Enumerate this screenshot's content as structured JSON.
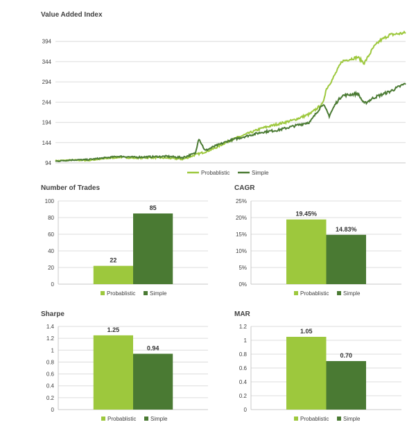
{
  "colors": {
    "probabilistic": "#9dc83d",
    "simple": "#4a7a33",
    "grid": "#dcdcdc",
    "axis": "#c8c8c8"
  },
  "chart_data": [
    {
      "type": "line",
      "title": "Value Added Index",
      "yticks": [
        94,
        144,
        194,
        244,
        294,
        344,
        394
      ],
      "ylim": [
        94,
        414
      ],
      "x_index_range": [
        0,
        1
      ],
      "grid": true,
      "legend_position": "bottom",
      "series": [
        {
          "name": "Probablistic",
          "color": "#9dc83d",
          "anchors": [
            [
              0,
              99
            ],
            [
              0.05,
              101
            ],
            [
              0.1,
              100
            ],
            [
              0.15,
              104
            ],
            [
              0.2,
              108
            ],
            [
              0.25,
              106
            ],
            [
              0.3,
              107
            ],
            [
              0.35,
              106
            ],
            [
              0.4,
              103
            ],
            [
              0.44,
              114
            ],
            [
              0.47,
              121
            ],
            [
              0.5,
              130
            ],
            [
              0.55,
              150
            ],
            [
              0.6,
              165
            ],
            [
              0.65,
              180
            ],
            [
              0.7,
              190
            ],
            [
              0.75,
              200
            ],
            [
              0.8,
              215
            ],
            [
              0.84,
              240
            ],
            [
              0.85,
              275
            ],
            [
              0.87,
              300
            ],
            [
              0.9,
              345
            ],
            [
              0.95,
              355
            ],
            [
              0.97,
              340
            ],
            [
              1.0,
              380
            ],
            [
              1.02,
              396
            ],
            [
              1.05,
              410
            ],
            [
              1.1,
              415
            ]
          ]
        },
        {
          "name": "Simple",
          "color": "#4a7a33",
          "anchors": [
            [
              0,
              98
            ],
            [
              0.05,
              101
            ],
            [
              0.1,
              102
            ],
            [
              0.15,
              106
            ],
            [
              0.2,
              110
            ],
            [
              0.25,
              108
            ],
            [
              0.3,
              109
            ],
            [
              0.35,
              110
            ],
            [
              0.4,
              107
            ],
            [
              0.44,
              118
            ],
            [
              0.45,
              155
            ],
            [
              0.47,
              124
            ],
            [
              0.5,
              135
            ],
            [
              0.55,
              150
            ],
            [
              0.6,
              160
            ],
            [
              0.65,
              170
            ],
            [
              0.7,
              175
            ],
            [
              0.75,
              185
            ],
            [
              0.8,
              195
            ],
            [
              0.84,
              240
            ],
            [
              0.86,
              210
            ],
            [
              0.88,
              240
            ],
            [
              0.9,
              260
            ],
            [
              0.95,
              265
            ],
            [
              0.97,
              240
            ],
            [
              1.0,
              255
            ],
            [
              1.05,
              270
            ],
            [
              1.1,
              290
            ]
          ]
        }
      ]
    },
    {
      "type": "bar",
      "title": "Number of Trades",
      "categories": [
        "Probablistic",
        "Simple"
      ],
      "values": [
        22,
        85
      ],
      "labels": [
        "22",
        "85"
      ],
      "ylim": [
        0,
        100
      ],
      "yticks": [
        0,
        20,
        40,
        60,
        80,
        100
      ],
      "ytick_labels": [
        "0",
        "20",
        "40",
        "60",
        "80",
        "100"
      ],
      "legend_position": "bottom"
    },
    {
      "type": "bar",
      "title": "CAGR",
      "categories": [
        "Probablistic",
        "Simple"
      ],
      "values": [
        19.45,
        14.83
      ],
      "labels": [
        "19.45%",
        "14.83%"
      ],
      "ylim": [
        0,
        25
      ],
      "yticks": [
        0,
        5,
        10,
        15,
        20,
        25
      ],
      "ytick_labels": [
        "0%",
        "5%",
        "10%",
        "15%",
        "20%",
        "25%"
      ],
      "legend_position": "bottom"
    },
    {
      "type": "bar",
      "title": "Sharpe",
      "categories": [
        "Probablistic",
        "Simple"
      ],
      "values": [
        1.25,
        0.94
      ],
      "labels": [
        "1.25",
        "0.94"
      ],
      "ylim": [
        0,
        1.4
      ],
      "yticks": [
        0,
        0.2,
        0.4,
        0.6,
        0.8,
        1.0,
        1.2,
        1.4
      ],
      "ytick_labels": [
        "0",
        "0.2",
        "0.4",
        "0.6",
        "0.8",
        "1",
        "1.2",
        "1.4"
      ],
      "legend_position": "bottom"
    },
    {
      "type": "bar",
      "title": "MAR",
      "categories": [
        "Probablistic",
        "Simple"
      ],
      "values": [
        1.05,
        0.7
      ],
      "labels": [
        "1.05",
        "0.70"
      ],
      "ylim": [
        0,
        1.2
      ],
      "yticks": [
        0,
        0.2,
        0.4,
        0.6,
        0.8,
        1.0,
        1.2
      ],
      "ytick_labels": [
        "0",
        "0.2",
        "0.4",
        "0.6",
        "0.8",
        "1",
        "1.2"
      ],
      "legend_position": "bottom"
    }
  ]
}
